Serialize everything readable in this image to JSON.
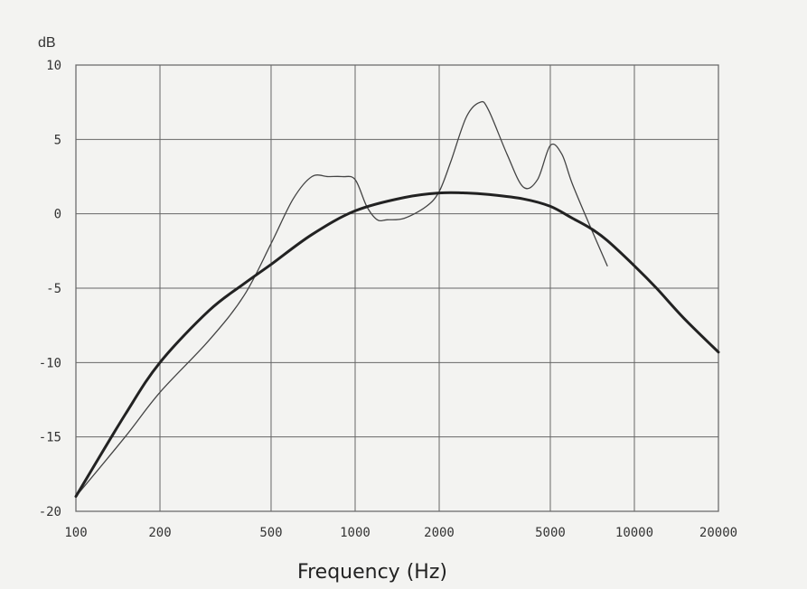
{
  "chart_data": {
    "type": "line",
    "ylabel": "dB",
    "xlabel": "Frequency (Hz)",
    "x_scale": "log",
    "xlim": [
      100,
      20000
    ],
    "ylim": [
      -20,
      10
    ],
    "x_ticks": [
      "100",
      "200",
      "500",
      "1000",
      "2000",
      "5000",
      "10000",
      "20000"
    ],
    "y_ticks": [
      "10",
      "5",
      "0",
      "-5",
      "-10",
      "-15",
      "-20"
    ],
    "grid": true,
    "series": [
      {
        "style": "thin",
        "color": "#444444",
        "x": [
          100,
          150,
          200,
          300,
          400,
          500,
          600,
          700,
          800,
          900,
          1000,
          1100,
          1200,
          1300,
          1500,
          1800,
          2000,
          2200,
          2500,
          2800,
          3000,
          3500,
          4000,
          4500,
          5000,
          5500,
          6000,
          7000,
          8000
        ],
        "y": [
          -19,
          -15,
          -12,
          -8.5,
          -5.5,
          -2,
          1,
          2.5,
          2.5,
          2.5,
          2.3,
          0.5,
          -0.4,
          -0.4,
          -0.3,
          0.5,
          1.5,
          3.5,
          6.5,
          7.5,
          7,
          4,
          1.8,
          2.3,
          4.6,
          4.0,
          2.0,
          -1.0,
          -3.5
        ]
      },
      {
        "style": "thick",
        "color": "#222222",
        "x": [
          100,
          150,
          200,
          300,
          400,
          500,
          700,
          1000,
          1500,
          2000,
          2500,
          3000,
          4000,
          5000,
          6000,
          7000,
          8000,
          10000,
          12000,
          15000,
          20000
        ],
        "y": [
          -19,
          -13.5,
          -10,
          -6.5,
          -4.7,
          -3.4,
          -1.4,
          0.2,
          1.1,
          1.4,
          1.4,
          1.3,
          1.0,
          0.5,
          -0.3,
          -1.0,
          -1.8,
          -3.5,
          -5.0,
          -7.0,
          -9.3
        ]
      }
    ]
  }
}
